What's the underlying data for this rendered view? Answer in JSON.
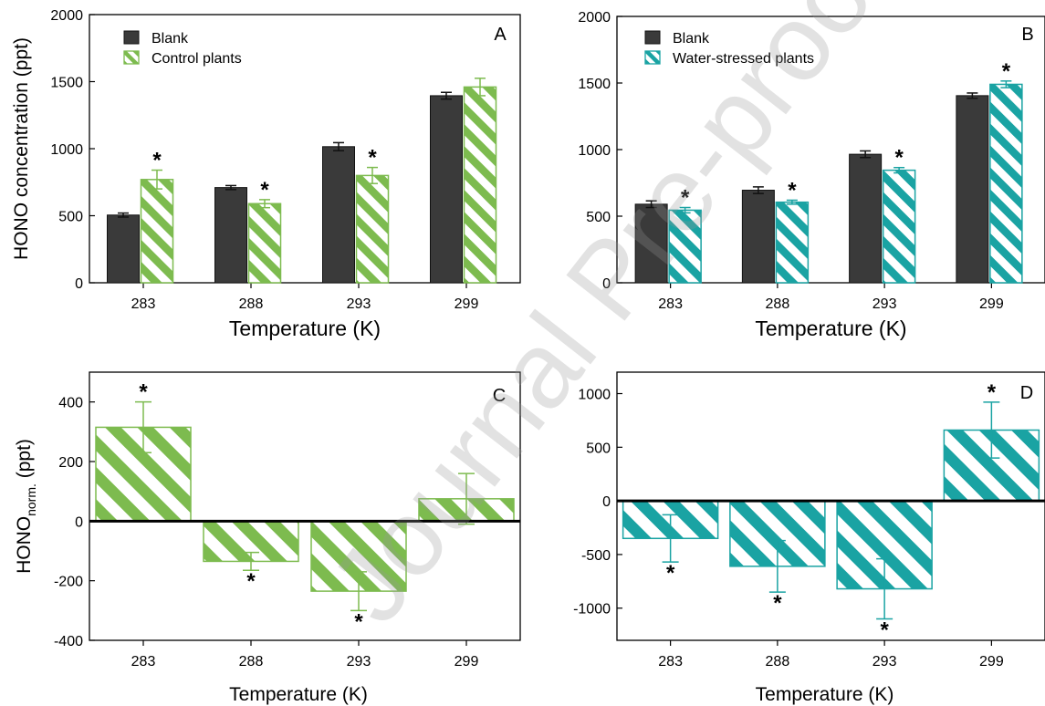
{
  "colors": {
    "blank": "#3a3a3a",
    "control": "#7dbb4f",
    "stressed": "#1aa3a3",
    "axis": "#000000"
  },
  "watermark": {
    "text": "Journal Pre-proof"
  },
  "chart_data": [
    {
      "panel": "A",
      "type": "bar",
      "xlabel": "Temperature (K)",
      "ylabel": "HONO concentration (ppt)",
      "categories": [
        "283",
        "288",
        "293",
        "299"
      ],
      "ylim": [
        0,
        2000
      ],
      "yticks": [
        "0",
        "500",
        "1000",
        "1500",
        "2000"
      ],
      "legend_position": "top-left",
      "series": [
        {
          "name": "Blank",
          "values": [
            505,
            710,
            1015,
            1395
          ],
          "errors": [
            15,
            15,
            30,
            25
          ],
          "style": "solid",
          "color": "#3a3a3a",
          "stars": [
            false,
            false,
            false,
            false
          ]
        },
        {
          "name": "Control plants",
          "values": [
            770,
            590,
            800,
            1460
          ],
          "errors": [
            70,
            30,
            60,
            65
          ],
          "style": "hatched",
          "color": "#7dbb4f",
          "stars": [
            true,
            true,
            true,
            false
          ]
        }
      ]
    },
    {
      "panel": "B",
      "type": "bar",
      "xlabel": "Temperature (K)",
      "ylabel": "",
      "categories": [
        "283",
        "288",
        "293",
        "299"
      ],
      "ylim": [
        0,
        2000
      ],
      "yticks": [
        "0",
        "500",
        "1000",
        "1500",
        "2000"
      ],
      "legend_position": "top-left",
      "series": [
        {
          "name": "Blank",
          "values": [
            590,
            695,
            965,
            1405
          ],
          "errors": [
            25,
            25,
            25,
            20
          ],
          "style": "solid",
          "color": "#3a3a3a",
          "stars": [
            false,
            false,
            false,
            false
          ]
        },
        {
          "name": "Water-stressed plants",
          "values": [
            545,
            605,
            845,
            1490
          ],
          "errors": [
            20,
            15,
            20,
            25
          ],
          "style": "hatched",
          "color": "#1aa3a3",
          "stars": [
            true,
            true,
            true,
            true
          ]
        }
      ]
    },
    {
      "panel": "C",
      "type": "bar",
      "xlabel": "Temperature (K)",
      "ylabel_main": "HONO",
      "ylabel_sub": "norm.",
      "ylabel_unit": " (ppt)",
      "categories": [
        "283",
        "288",
        "293",
        "299"
      ],
      "ylim": [
        -400,
        500
      ],
      "yticks": [
        "-400",
        "-200",
        "0",
        "200",
        "400"
      ],
      "series": [
        {
          "name": "",
          "values": [
            315,
            -135,
            -235,
            75
          ],
          "errors": [
            85,
            30,
            65,
            85
          ],
          "style": "hatched",
          "color": "#7dbb4f",
          "stars": [
            true,
            true,
            true,
            false
          ]
        }
      ]
    },
    {
      "panel": "D",
      "type": "bar",
      "xlabel": "Temperature (K)",
      "ylabel": "",
      "categories": [
        "283",
        "288",
        "293",
        "299"
      ],
      "ylim": [
        -1300,
        1200
      ],
      "yticks": [
        "-1000",
        "-500",
        "0",
        "500",
        "1000"
      ],
      "series": [
        {
          "name": "",
          "values": [
            -350,
            -610,
            -820,
            660
          ],
          "errors": [
            220,
            240,
            280,
            260
          ],
          "style": "hatched",
          "color": "#1aa3a3",
          "stars": [
            true,
            true,
            true,
            true
          ]
        }
      ]
    }
  ]
}
